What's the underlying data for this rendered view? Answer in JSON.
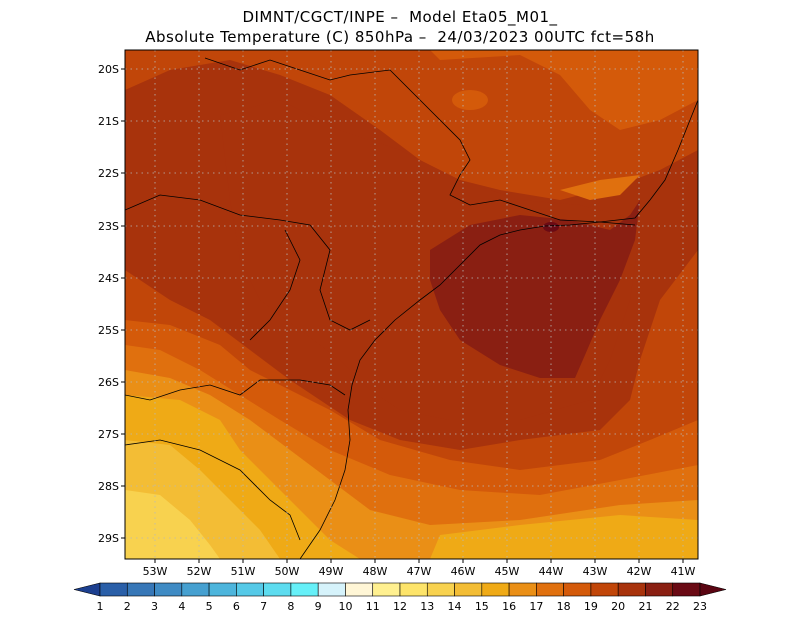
{
  "header": {
    "line1": "DIMNT/CGCT/INPE –  Model Eta05_M01_",
    "line2": "Absolute Temperature (C) 850hPa –  24/03/2023 00UTC fct=58h"
  },
  "map": {
    "lat_labels": [
      "20S",
      "21S",
      "22S",
      "23S",
      "24S",
      "25S",
      "26S",
      "27S",
      "28S",
      "29S"
    ],
    "lon_labels": [
      "53W",
      "52W",
      "51W",
      "50W",
      "49W",
      "48W",
      "47W",
      "46W",
      "45W",
      "44W",
      "43W",
      "42W",
      "41W"
    ]
  },
  "colorbar": {
    "labels": [
      "1",
      "2",
      "3",
      "4",
      "5",
      "6",
      "7",
      "8",
      "9",
      "10",
      "11",
      "12",
      "13",
      "14",
      "15",
      "16",
      "17",
      "18",
      "19",
      "20",
      "21",
      "22",
      "23"
    ],
    "colors": [
      "#1c3f8f",
      "#2a5fa8",
      "#3777b7",
      "#3f8bc4",
      "#46a0d0",
      "#4db5dc",
      "#55c9e7",
      "#5ddcef",
      "#66f0f8",
      "#d6f3fb",
      "#fff6d6",
      "#fff090",
      "#fde46a",
      "#f8d24f",
      "#f3bd35",
      "#efaa16",
      "#ea8f16",
      "#e0700e",
      "#d45a0a",
      "#c14609",
      "#a8330c",
      "#8a1f12",
      "#6a0a14",
      "#5a0512"
    ]
  }
}
